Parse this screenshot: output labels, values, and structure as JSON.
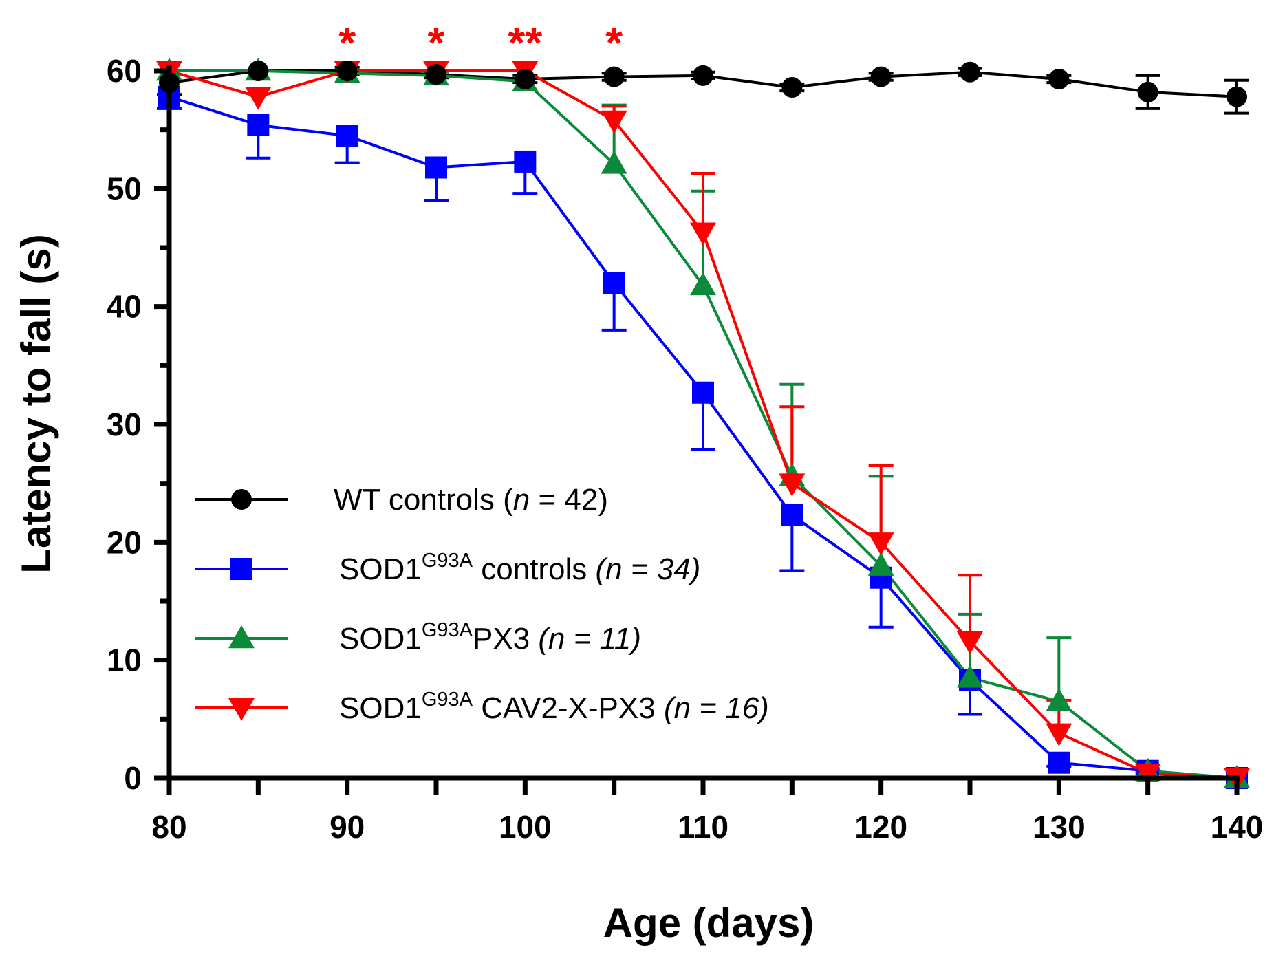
{
  "chart_data": {
    "type": "line",
    "title": "",
    "xlabel": "Age (days)",
    "ylabel": "Latency to fall (s)",
    "xlim": [
      80,
      140
    ],
    "ylim": [
      0,
      60
    ],
    "x_ticks": [
      80,
      90,
      100,
      110,
      120,
      130,
      140
    ],
    "x_tick_labels": [
      "80",
      "90",
      "100",
      "110",
      "120",
      "130",
      "140"
    ],
    "x_minor_ticks": [
      85,
      95,
      105,
      115,
      125,
      135
    ],
    "y_ticks": [
      0,
      10,
      20,
      30,
      40,
      50,
      60
    ],
    "y_tick_labels": [
      "0",
      "10",
      "20",
      "30",
      "40",
      "50",
      "60"
    ],
    "y_minor_step": 5,
    "grid": false,
    "legend_position": "bottom-left",
    "series": [
      {
        "key": "wt",
        "name": "WT controls",
        "legend_prefix": "WT controls (",
        "legend_sup": "",
        "legend_n_label": "n",
        "legend_n_value": " = 42)",
        "color": "#000000",
        "marker": "circle",
        "x": [
          80,
          85,
          90,
          95,
          100,
          105,
          110,
          115,
          120,
          125,
          130,
          135,
          140
        ],
        "values": [
          59,
          60,
          60,
          59.7,
          59.3,
          59.5,
          59.6,
          58.6,
          59.5,
          59.9,
          59.3,
          58.2,
          57.8
        ],
        "error": [
          1,
          0,
          0.3,
          0.3,
          0.3,
          0.3,
          0.3,
          0.3,
          0.3,
          0.3,
          0.3,
          1.4,
          1.4
        ]
      },
      {
        "key": "sod1",
        "name": "SOD1G93A controls",
        "legend_prefix": "SOD1",
        "legend_sup": "G93A",
        "legend_suffix": " controls ",
        "legend_n_label": "(n",
        "legend_n_value": " = 34)",
        "color": "#0000ff",
        "marker": "square",
        "x": [
          80,
          85,
          90,
          95,
          100,
          105,
          110,
          115,
          120,
          125,
          130,
          135,
          140
        ],
        "values": [
          57.8,
          55.4,
          54.5,
          51.8,
          52.3,
          42,
          32.7,
          22.3,
          17,
          8.3,
          1.3,
          0.6,
          0
        ],
        "error": [
          1,
          2.8,
          2.3,
          2.8,
          2.7,
          4,
          4.8,
          4.7,
          4.2,
          2.9,
          0.3,
          0.2,
          0
        ]
      },
      {
        "key": "px3",
        "name": "SOD1G93A PX3",
        "legend_prefix": "SOD1",
        "legend_sup": "G93A",
        "legend_suffix": "PX3 ",
        "legend_n_label": "(n",
        "legend_n_value": " = 11)",
        "color": "#0b8a3a",
        "marker": "triangle-up",
        "x": [
          80,
          85,
          90,
          95,
          100,
          105,
          110,
          115,
          120,
          125,
          130,
          135,
          140
        ],
        "values": [
          60,
          60,
          59.8,
          59.6,
          59.1,
          52.1,
          41.8,
          25.6,
          18,
          8.5,
          6.5,
          0.6,
          0
        ],
        "error": [
          0,
          0,
          0.3,
          0.3,
          0.3,
          5,
          8,
          7.8,
          7.6,
          5.4,
          5.4,
          0.2,
          0
        ]
      },
      {
        "key": "cav2",
        "name": "SOD1G93A CAV2-X-PX3",
        "legend_prefix": "SOD1",
        "legend_sup": "G93A",
        "legend_suffix": " CAV2-X-PX3 ",
        "legend_n_label": "(n",
        "legend_n_value": " = 16)",
        "color": "#ff0000",
        "marker": "triangle-down",
        "x": [
          80,
          85,
          90,
          95,
          100,
          105,
          110,
          115,
          120,
          125,
          130,
          135,
          140
        ],
        "values": [
          60,
          57.8,
          60,
          60,
          60,
          55.8,
          46.3,
          25,
          20,
          11.6,
          3.8,
          0.4,
          0
        ],
        "error": [
          0,
          0,
          0,
          0,
          0,
          1.2,
          5,
          6.5,
          6.5,
          5.6,
          2.8,
          0.2,
          0
        ]
      }
    ],
    "annotations": [
      {
        "x": 90,
        "text": "*",
        "color": "#ff0000"
      },
      {
        "x": 95,
        "text": "*",
        "color": "#ff0000"
      },
      {
        "x": 100,
        "text": "**",
        "color": "#ff0000"
      },
      {
        "x": 105,
        "text": "*",
        "color": "#ff0000"
      }
    ]
  }
}
